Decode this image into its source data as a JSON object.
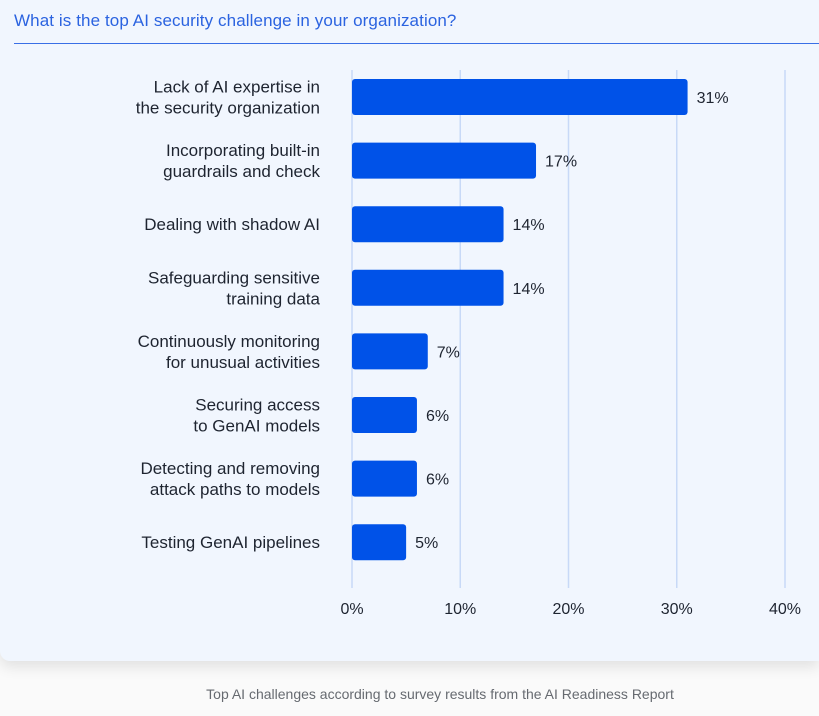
{
  "title": "What is the top AI security challenge in your organization?",
  "caption": "Top AI challenges according to survey results from the AI Readiness Report",
  "colors": {
    "bar": "#0052e8",
    "grid": "#c8d9f7",
    "text": "#1e2430"
  },
  "chart_data": {
    "type": "bar",
    "orientation": "horizontal",
    "title": "What is the top AI security challenge in your organization?",
    "categories": [
      [
        "Lack of AI expertise in",
        "the security organization"
      ],
      [
        "Incorporating built-in",
        "guardrails and check"
      ],
      [
        "Dealing with shadow AI"
      ],
      [
        "Safeguarding sensitive",
        "training data"
      ],
      [
        "Continuously monitoring",
        "for unusual activities"
      ],
      [
        "Securing access",
        "to GenAI models"
      ],
      [
        "Detecting and removing",
        "attack paths to models"
      ],
      [
        "Testing GenAI pipelines"
      ]
    ],
    "values": [
      31,
      17,
      14,
      14,
      7,
      6,
      6,
      5
    ],
    "value_labels": [
      "31%",
      "17%",
      "14%",
      "14%",
      "7%",
      "6%",
      "6%",
      "5%"
    ],
    "xticks": [
      0,
      10,
      20,
      30,
      40
    ],
    "xtick_labels": [
      "0%",
      "10%",
      "20%",
      "30%",
      "40%"
    ],
    "xlim": [
      0,
      40
    ],
    "grid": true,
    "xlabel": "",
    "ylabel": ""
  }
}
